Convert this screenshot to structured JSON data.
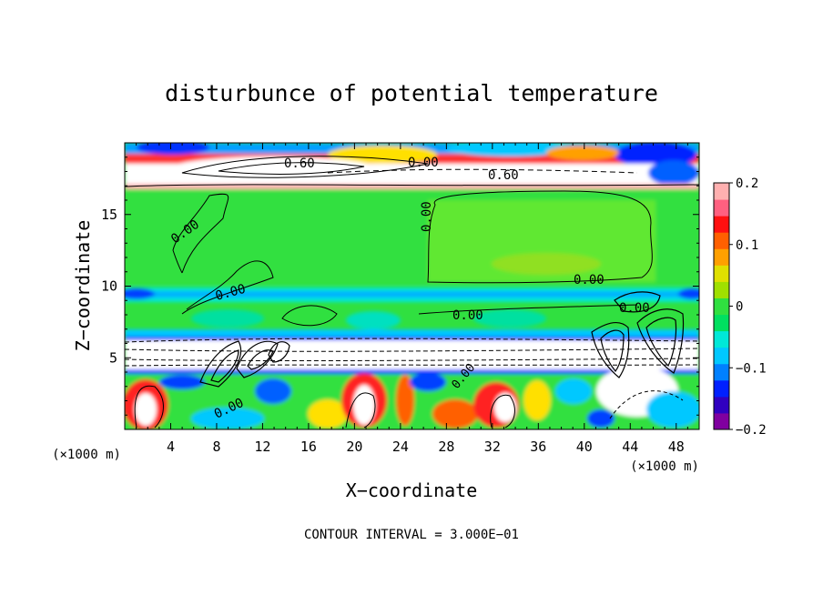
{
  "chart_data": {
    "type": "heatmap",
    "title": "disturbunce of potential temperature",
    "xlabel": "X−coordinate",
    "ylabel": "Z−coordinate",
    "x_unit": "(×1000 m)",
    "z_unit": "(×1000 m)",
    "xlim": [
      0,
      50
    ],
    "ylim": [
      0,
      20
    ],
    "x_ticks": [
      "4",
      "8",
      "12",
      "16",
      "20",
      "24",
      "28",
      "32",
      "36",
      "40",
      "44",
      "48"
    ],
    "y_ticks": [
      "5",
      "10",
      "15"
    ],
    "colorbar": {
      "range": [
        -0.2,
        0.2
      ],
      "tick_labels": [
        "0.2",
        "0.1",
        "0",
        "−0.1",
        "−0.2"
      ],
      "colors": [
        "#8000a0",
        "#3000c0",
        "#0020ff",
        "#0080ff",
        "#00c8ff",
        "#00e8d8",
        "#00e060",
        "#30e040",
        "#a0e000",
        "#e0e000",
        "#ffa000",
        "#ff6000",
        "#ff1010",
        "#ff6080",
        "#ffb0b0"
      ]
    },
    "contour_labels": [
      "0.00",
      "0.00",
      "0.00",
      "0.00",
      "0.00",
      "0.00",
      "0.00",
      "0.60",
      "0.60",
      "0.00",
      "0.00"
    ],
    "annotation": "CONTOUR INTERVAL = 3.000E−01"
  }
}
